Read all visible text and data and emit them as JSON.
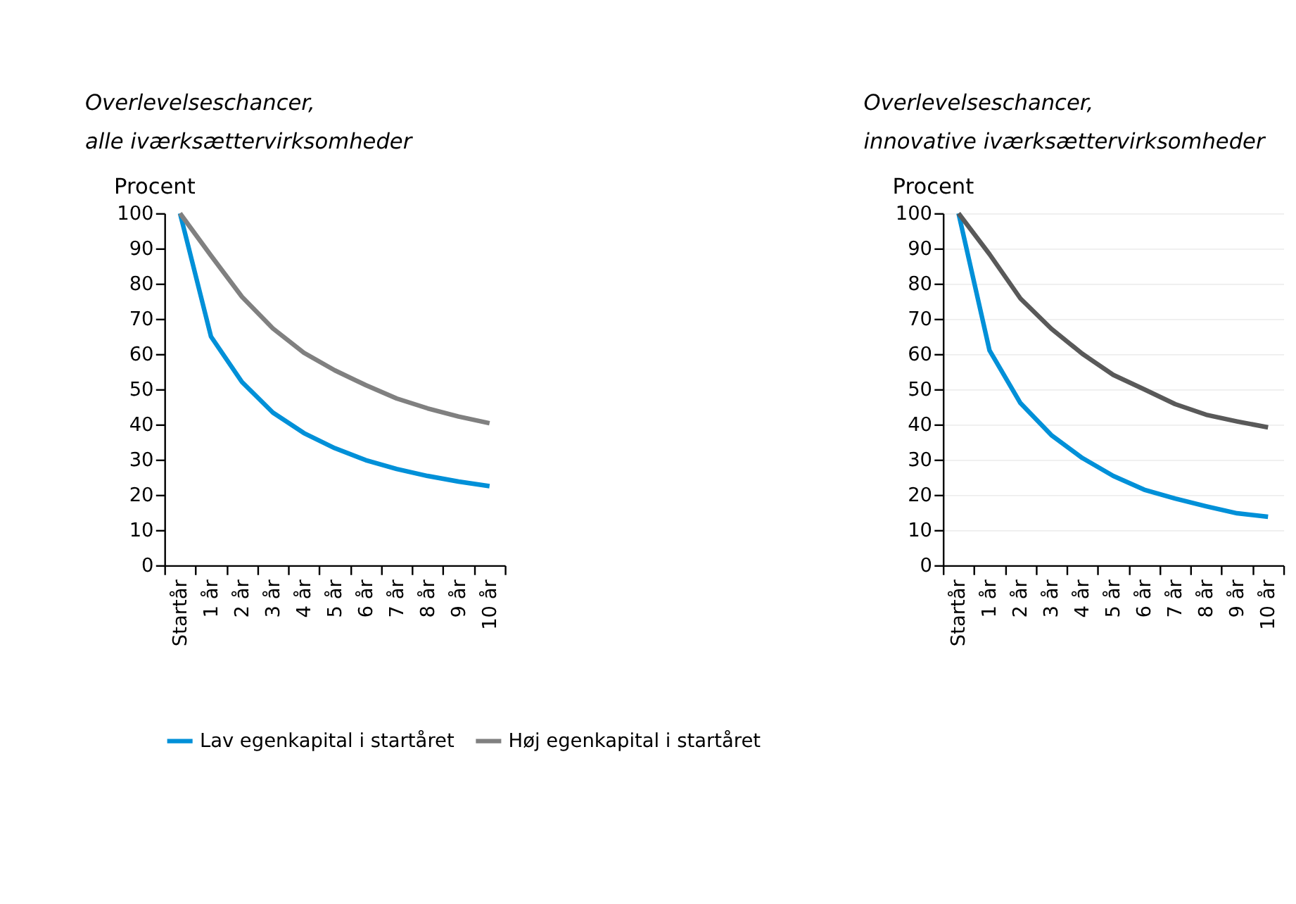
{
  "chart_data": [
    {
      "type": "line",
      "title": [
        "Overlevelseschancer,",
        "alle iværksættervirksomheder"
      ],
      "ylabel": "Procent",
      "categories": [
        "Startår",
        "1 år",
        "2 år",
        "3 år",
        "4 år",
        "5 år",
        "6 år",
        "7 år",
        "8 år",
        "9 år",
        "10 år"
      ],
      "series": [
        {
          "name": "Lav egenkapital i startåret",
          "color": "#0090d8",
          "values": [
            100,
            65,
            52.1,
            43.4,
            37.6,
            33.3,
            29.9,
            27.4,
            25.4,
            23.8,
            22.5
          ]
        },
        {
          "name": "Høj egenkapital i startåret",
          "color": "#808080",
          "values": [
            100,
            88,
            76.3,
            67.3,
            60.4,
            55.4,
            51.2,
            47.4,
            44.6,
            42.3,
            40.4
          ]
        }
      ],
      "ylim": [
        0,
        100
      ],
      "yticks": [
        0,
        10,
        20,
        30,
        40,
        50,
        60,
        70,
        80,
        90,
        100
      ],
      "grid": false,
      "legend": "bottom",
      "line_style": "solid",
      "marker": "none"
    },
    {
      "type": "line",
      "title": [
        "Overlevelseschancer,",
        "innovative iværksættervirksomheder"
      ],
      "ylabel": "Procent",
      "categories": [
        "Startår",
        "1 år",
        "2 år",
        "3 år",
        "4 år",
        "5 år",
        "6 år",
        "7 år",
        "8 år",
        "9 år",
        "10 år"
      ],
      "series": [
        {
          "color": "#0090d8",
          "values": [
            100,
            61.1,
            46.1,
            37,
            30.5,
            25.4,
            21.5,
            19,
            16.8,
            14.8,
            13.8
          ]
        },
        {
          "color": "#595959",
          "values": [
            100,
            88.4,
            75.8,
            67.2,
            60.1,
            54.1,
            50,
            45.8,
            42.8,
            40.9,
            39.2
          ]
        }
      ],
      "ylim": [
        0,
        100
      ],
      "yticks": [
        0,
        10,
        20,
        30,
        40,
        50,
        60,
        70,
        80,
        90,
        100
      ],
      "grid": "y",
      "legend": false,
      "line_style": "solid",
      "marker": "none"
    }
  ]
}
